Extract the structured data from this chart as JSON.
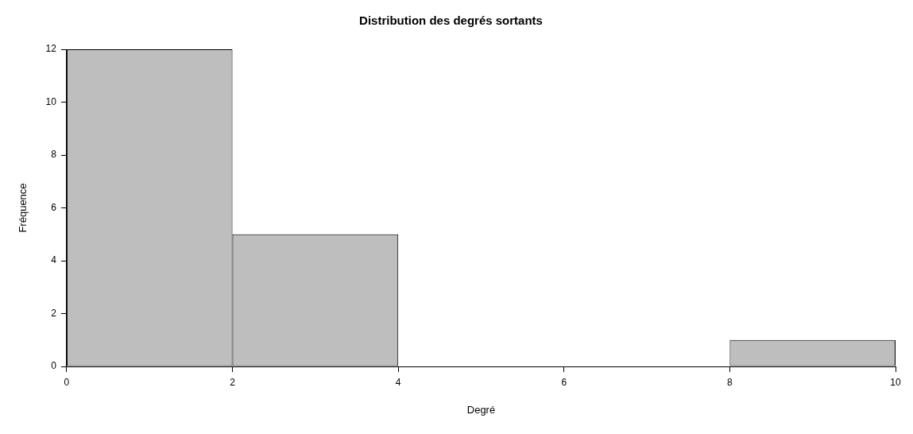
{
  "chart_data": {
    "type": "histogram",
    "title": "Distribution des degrés sortants",
    "xlabel": "Degré",
    "ylabel": "Fréquence",
    "bins": [
      0,
      2,
      4,
      6,
      8,
      10
    ],
    "values": [
      12,
      5,
      0,
      0,
      1
    ],
    "color": "#bebebe",
    "xlim": [
      0,
      10
    ],
    "xticks": [
      0,
      2,
      4,
      6,
      8,
      10
    ],
    "ylim": [
      0,
      12
    ],
    "yticks": [
      0,
      2,
      4,
      6,
      8,
      10,
      12
    ],
    "grid": false,
    "legend": false
  }
}
